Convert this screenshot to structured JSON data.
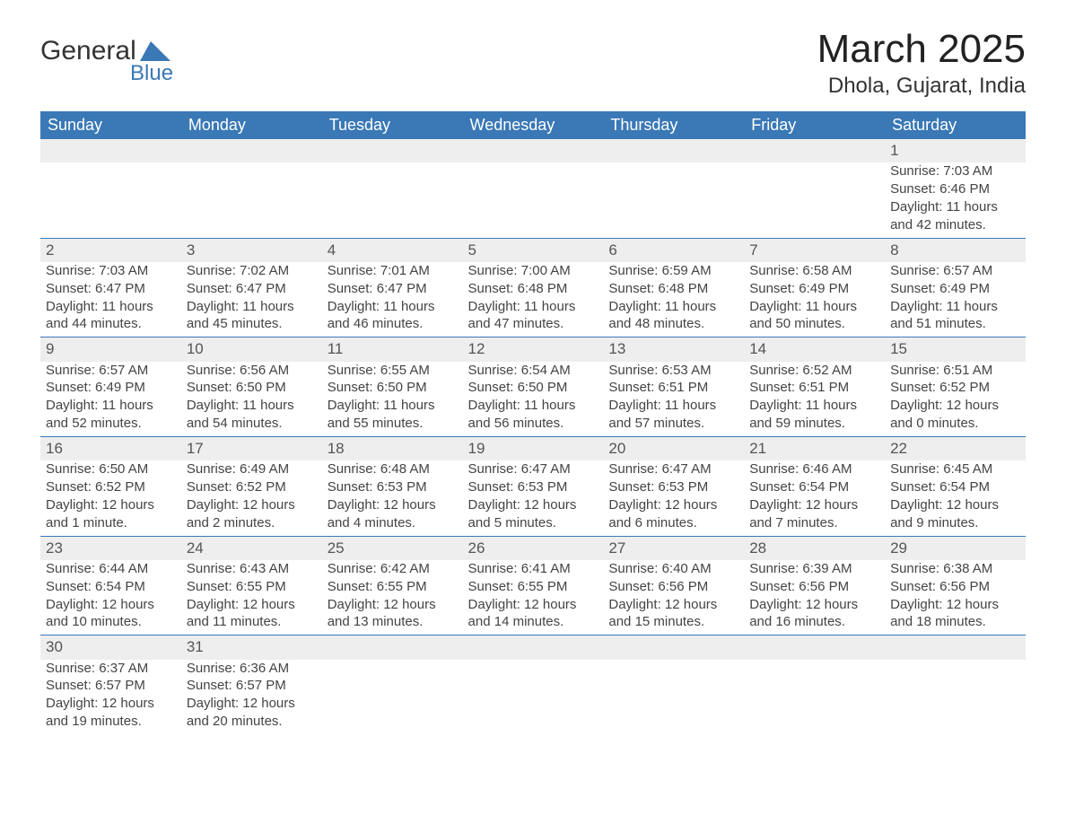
{
  "logo": {
    "word1": "General",
    "word2": "Blue",
    "accent_color": "#3a78b6"
  },
  "title": "March 2025",
  "location": "Dhola, Gujarat, India",
  "style": {
    "header_bg": "#3a78b6",
    "header_fg": "#ffffff",
    "daynum_bg": "#eeeeee",
    "row_border": "#3a78b6",
    "body_font_size_pt": 11,
    "header_font_size_pt": 14,
    "title_font_size_pt": 33,
    "location_font_size_pt": 18
  },
  "weekdays": [
    "Sunday",
    "Monday",
    "Tuesday",
    "Wednesday",
    "Thursday",
    "Friday",
    "Saturday"
  ],
  "weeks": [
    [
      null,
      null,
      null,
      null,
      null,
      null,
      {
        "d": "1",
        "sr": "Sunrise: 7:03 AM",
        "ss": "Sunset: 6:46 PM",
        "dl": "Daylight: 11 hours and 42 minutes."
      }
    ],
    [
      {
        "d": "2",
        "sr": "Sunrise: 7:03 AM",
        "ss": "Sunset: 6:47 PM",
        "dl": "Daylight: 11 hours and 44 minutes."
      },
      {
        "d": "3",
        "sr": "Sunrise: 7:02 AM",
        "ss": "Sunset: 6:47 PM",
        "dl": "Daylight: 11 hours and 45 minutes."
      },
      {
        "d": "4",
        "sr": "Sunrise: 7:01 AM",
        "ss": "Sunset: 6:47 PM",
        "dl": "Daylight: 11 hours and 46 minutes."
      },
      {
        "d": "5",
        "sr": "Sunrise: 7:00 AM",
        "ss": "Sunset: 6:48 PM",
        "dl": "Daylight: 11 hours and 47 minutes."
      },
      {
        "d": "6",
        "sr": "Sunrise: 6:59 AM",
        "ss": "Sunset: 6:48 PM",
        "dl": "Daylight: 11 hours and 48 minutes."
      },
      {
        "d": "7",
        "sr": "Sunrise: 6:58 AM",
        "ss": "Sunset: 6:49 PM",
        "dl": "Daylight: 11 hours and 50 minutes."
      },
      {
        "d": "8",
        "sr": "Sunrise: 6:57 AM",
        "ss": "Sunset: 6:49 PM",
        "dl": "Daylight: 11 hours and 51 minutes."
      }
    ],
    [
      {
        "d": "9",
        "sr": "Sunrise: 6:57 AM",
        "ss": "Sunset: 6:49 PM",
        "dl": "Daylight: 11 hours and 52 minutes."
      },
      {
        "d": "10",
        "sr": "Sunrise: 6:56 AM",
        "ss": "Sunset: 6:50 PM",
        "dl": "Daylight: 11 hours and 54 minutes."
      },
      {
        "d": "11",
        "sr": "Sunrise: 6:55 AM",
        "ss": "Sunset: 6:50 PM",
        "dl": "Daylight: 11 hours and 55 minutes."
      },
      {
        "d": "12",
        "sr": "Sunrise: 6:54 AM",
        "ss": "Sunset: 6:50 PM",
        "dl": "Daylight: 11 hours and 56 minutes."
      },
      {
        "d": "13",
        "sr": "Sunrise: 6:53 AM",
        "ss": "Sunset: 6:51 PM",
        "dl": "Daylight: 11 hours and 57 minutes."
      },
      {
        "d": "14",
        "sr": "Sunrise: 6:52 AM",
        "ss": "Sunset: 6:51 PM",
        "dl": "Daylight: 11 hours and 59 minutes."
      },
      {
        "d": "15",
        "sr": "Sunrise: 6:51 AM",
        "ss": "Sunset: 6:52 PM",
        "dl": "Daylight: 12 hours and 0 minutes."
      }
    ],
    [
      {
        "d": "16",
        "sr": "Sunrise: 6:50 AM",
        "ss": "Sunset: 6:52 PM",
        "dl": "Daylight: 12 hours and 1 minute."
      },
      {
        "d": "17",
        "sr": "Sunrise: 6:49 AM",
        "ss": "Sunset: 6:52 PM",
        "dl": "Daylight: 12 hours and 2 minutes."
      },
      {
        "d": "18",
        "sr": "Sunrise: 6:48 AM",
        "ss": "Sunset: 6:53 PM",
        "dl": "Daylight: 12 hours and 4 minutes."
      },
      {
        "d": "19",
        "sr": "Sunrise: 6:47 AM",
        "ss": "Sunset: 6:53 PM",
        "dl": "Daylight: 12 hours and 5 minutes."
      },
      {
        "d": "20",
        "sr": "Sunrise: 6:47 AM",
        "ss": "Sunset: 6:53 PM",
        "dl": "Daylight: 12 hours and 6 minutes."
      },
      {
        "d": "21",
        "sr": "Sunrise: 6:46 AM",
        "ss": "Sunset: 6:54 PM",
        "dl": "Daylight: 12 hours and 7 minutes."
      },
      {
        "d": "22",
        "sr": "Sunrise: 6:45 AM",
        "ss": "Sunset: 6:54 PM",
        "dl": "Daylight: 12 hours and 9 minutes."
      }
    ],
    [
      {
        "d": "23",
        "sr": "Sunrise: 6:44 AM",
        "ss": "Sunset: 6:54 PM",
        "dl": "Daylight: 12 hours and 10 minutes."
      },
      {
        "d": "24",
        "sr": "Sunrise: 6:43 AM",
        "ss": "Sunset: 6:55 PM",
        "dl": "Daylight: 12 hours and 11 minutes."
      },
      {
        "d": "25",
        "sr": "Sunrise: 6:42 AM",
        "ss": "Sunset: 6:55 PM",
        "dl": "Daylight: 12 hours and 13 minutes."
      },
      {
        "d": "26",
        "sr": "Sunrise: 6:41 AM",
        "ss": "Sunset: 6:55 PM",
        "dl": "Daylight: 12 hours and 14 minutes."
      },
      {
        "d": "27",
        "sr": "Sunrise: 6:40 AM",
        "ss": "Sunset: 6:56 PM",
        "dl": "Daylight: 12 hours and 15 minutes."
      },
      {
        "d": "28",
        "sr": "Sunrise: 6:39 AM",
        "ss": "Sunset: 6:56 PM",
        "dl": "Daylight: 12 hours and 16 minutes."
      },
      {
        "d": "29",
        "sr": "Sunrise: 6:38 AM",
        "ss": "Sunset: 6:56 PM",
        "dl": "Daylight: 12 hours and 18 minutes."
      }
    ],
    [
      {
        "d": "30",
        "sr": "Sunrise: 6:37 AM",
        "ss": "Sunset: 6:57 PM",
        "dl": "Daylight: 12 hours and 19 minutes."
      },
      {
        "d": "31",
        "sr": "Sunrise: 6:36 AM",
        "ss": "Sunset: 6:57 PM",
        "dl": "Daylight: 12 hours and 20 minutes."
      },
      null,
      null,
      null,
      null,
      null
    ]
  ]
}
